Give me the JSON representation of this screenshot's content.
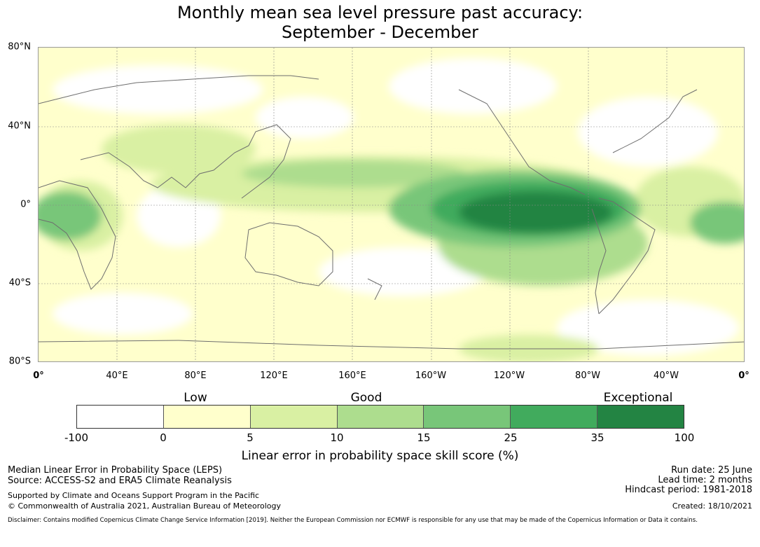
{
  "title_line1": "Monthly mean sea level pressure past accuracy:",
  "title_line2": "September - December",
  "map": {
    "lat_labels": [
      "80°N",
      "40°N",
      "0°",
      "40°S",
      "80°S"
    ],
    "lon_labels": [
      "0°",
      "40°E",
      "80°E",
      "120°E",
      "160°E",
      "160°W",
      "120°W",
      "80°W",
      "40°W",
      "0°"
    ],
    "colors": [
      "#ffffff",
      "#ffffcc",
      "#d9f0a3",
      "#addd8e",
      "#78c679",
      "#41ab5d",
      "#238443"
    ]
  },
  "legend": {
    "categories": [
      "Low",
      "Good",
      "Exceptional"
    ],
    "ticks": [
      "-100",
      "0",
      "5",
      "10",
      "15",
      "25",
      "35",
      "100"
    ],
    "title": "Linear error in probability space skill score (%)"
  },
  "footer": {
    "left1": "Median Linear Error in Probability Space (LEPS)",
    "left2": "Source: ACCESS-S2 and ERA5 Climate Reanalysis",
    "left3": "Supported by Climate and Oceans Support Program in the Pacific",
    "left4": "© Commonwealth of Australia 2021, Australian Bureau of Meteorology",
    "run_date": "Run date: 25 June",
    "lead_time": "Lead time: 2 months",
    "hindcast": "Hindcast period: 1981-2018",
    "created": "Created: 18/10/2021",
    "disclaimer": "Disclaimer: Contains modified Copernicus Climate Change Service Information [2019]. Neither the European Commission nor ECMWF is responsible for any use that may be made of the Copernicus Information or Data it contains."
  }
}
